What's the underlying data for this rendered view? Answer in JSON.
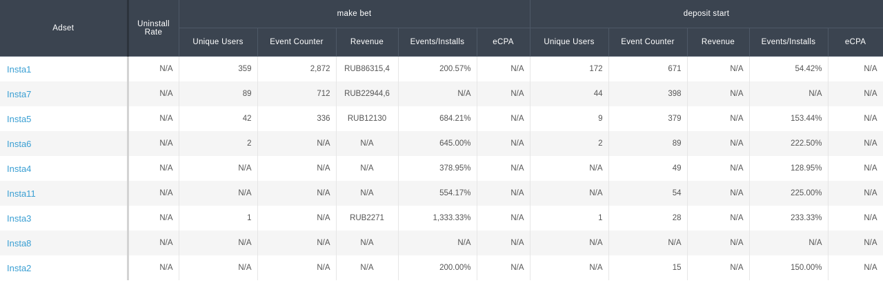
{
  "header": {
    "adset": "Adset",
    "uninstall_rate": "Uninstall Rate",
    "group1": "make bet",
    "group2": "deposit start",
    "sub": [
      "Unique Users",
      "Event Counter",
      "Revenue",
      "Events/Installs",
      "eCPA"
    ]
  },
  "rows": [
    {
      "adset": "Insta1",
      "uninstall": "N/A",
      "g1": [
        "359",
        "2,872",
        "RUB86315,4",
        "200.57%",
        "N/A"
      ],
      "g2": [
        "172",
        "671",
        "N/A",
        "54.42%",
        "N/A"
      ]
    },
    {
      "adset": "Insta7",
      "uninstall": "N/A",
      "g1": [
        "89",
        "712",
        "RUB22944,6",
        "N/A",
        "N/A"
      ],
      "g2": [
        "44",
        "398",
        "N/A",
        "N/A",
        "N/A"
      ]
    },
    {
      "adset": "Insta5",
      "uninstall": "N/A",
      "g1": [
        "42",
        "336",
        "RUB12130",
        "684.21%",
        "N/A"
      ],
      "g2": [
        "9",
        "379",
        "N/A",
        "153.44%",
        "N/A"
      ]
    },
    {
      "adset": "Insta6",
      "uninstall": "N/A",
      "g1": [
        "2",
        "N/A",
        "N/A",
        "645.00%",
        "N/A"
      ],
      "g2": [
        "2",
        "89",
        "N/A",
        "222.50%",
        "N/A"
      ]
    },
    {
      "adset": "Insta4",
      "uninstall": "N/A",
      "g1": [
        "N/A",
        "N/A",
        "N/A",
        "378.95%",
        "N/A"
      ],
      "g2": [
        "N/A",
        "49",
        "N/A",
        "128.95%",
        "N/A"
      ]
    },
    {
      "adset": "Insta11",
      "uninstall": "N/A",
      "g1": [
        "N/A",
        "N/A",
        "N/A",
        "554.17%",
        "N/A"
      ],
      "g2": [
        "N/A",
        "54",
        "N/A",
        "225.00%",
        "N/A"
      ]
    },
    {
      "adset": "Insta3",
      "uninstall": "N/A",
      "g1": [
        "1",
        "N/A",
        "RUB2271",
        "1,333.33%",
        "N/A"
      ],
      "g2": [
        "1",
        "28",
        "N/A",
        "233.33%",
        "N/A"
      ]
    },
    {
      "adset": "Insta8",
      "uninstall": "N/A",
      "g1": [
        "N/A",
        "N/A",
        "N/A",
        "N/A",
        "N/A"
      ],
      "g2": [
        "N/A",
        "N/A",
        "N/A",
        "N/A",
        "N/A"
      ]
    },
    {
      "adset": "Insta2",
      "uninstall": "N/A",
      "g1": [
        "N/A",
        "N/A",
        "N/A",
        "200.00%",
        "N/A"
      ],
      "g2": [
        "N/A",
        "15",
        "N/A",
        "150.00%",
        "N/A"
      ]
    }
  ]
}
